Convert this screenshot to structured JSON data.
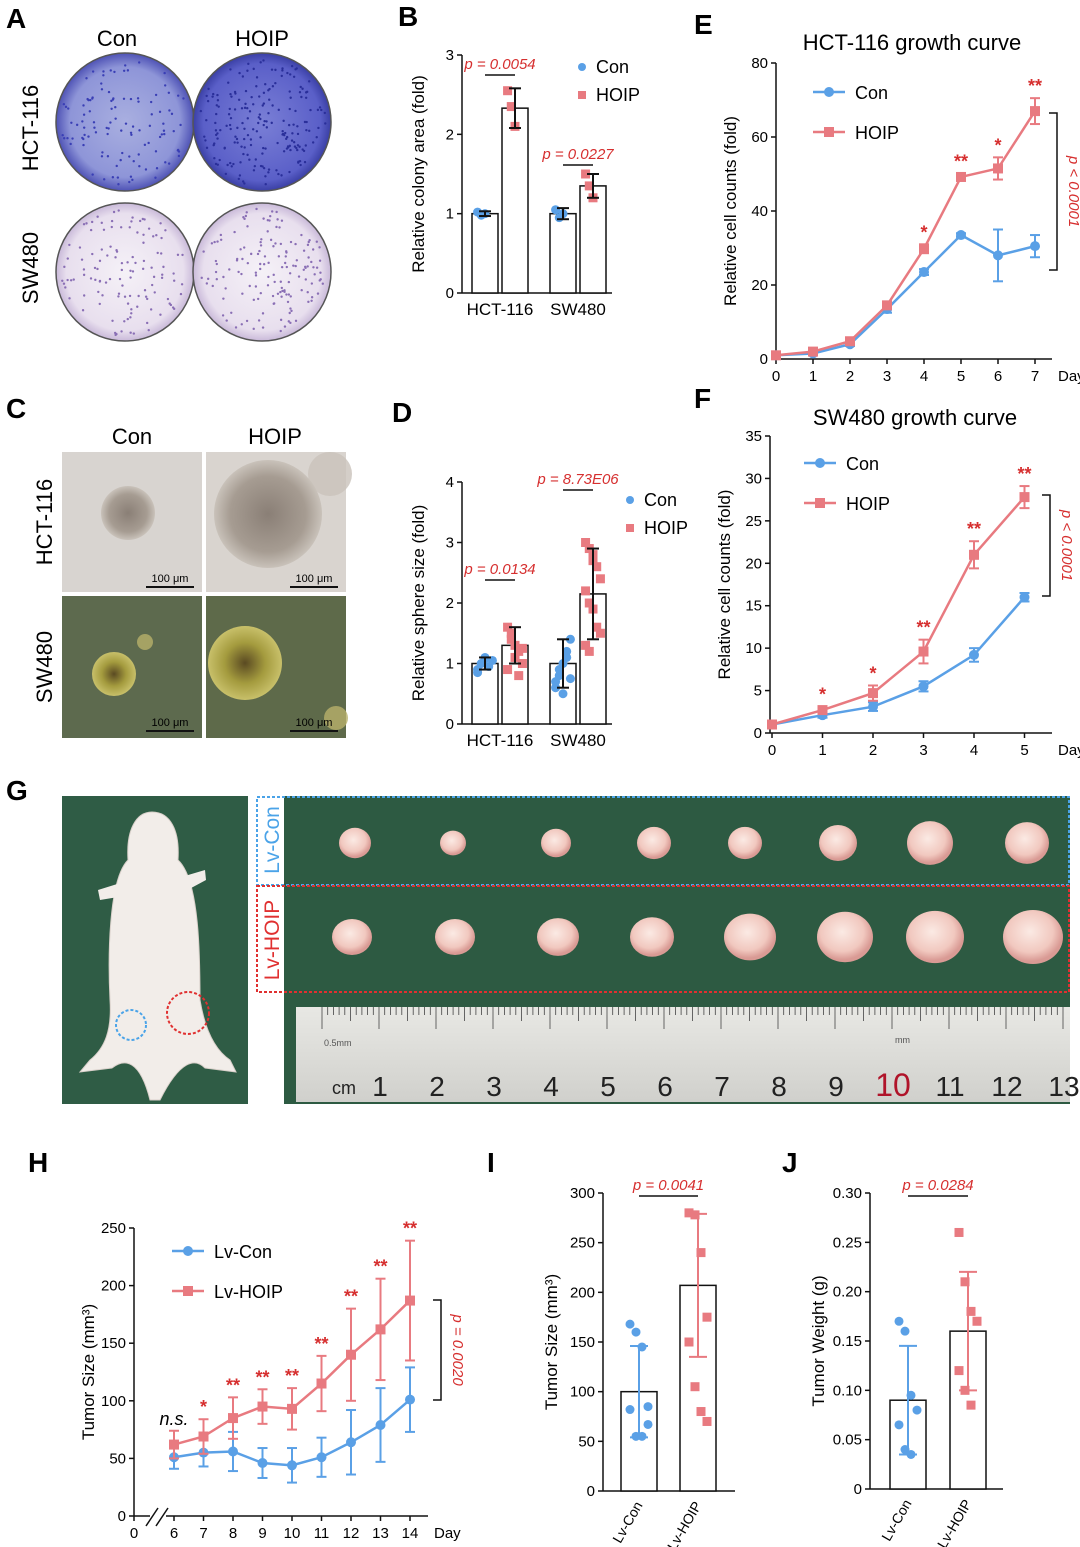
{
  "colors": {
    "con": "#5aa0e6",
    "hoip": "#e87a80",
    "red": "#d62f2f",
    "green": "#2d5a42",
    "dish_blue": "#3a3fb5",
    "dish_purple": "#8a6fb5"
  },
  "panel_labels": {
    "A": "A",
    "B": "B",
    "C": "C",
    "D": "D",
    "E": "E",
    "F": "F",
    "G": "G",
    "H": "H",
    "I": "I",
    "J": "J"
  },
  "panelA": {
    "cols": [
      "Con",
      "HOIP"
    ],
    "rows": [
      "HCT-116",
      "SW480"
    ]
  },
  "panelC": {
    "cols": [
      "Con",
      "HOIP"
    ],
    "rows": [
      "HCT-116",
      "SW480"
    ],
    "scale": "100 μm"
  },
  "panelG": {
    "con_label": "Lv-Con",
    "hoip_label": "Lv-HOIP",
    "ruler_cm": "cm",
    "ruler_small": "0.5mm",
    "ruler_mm": "mm",
    "ruler_numbers": [
      "1",
      "2",
      "3",
      "4",
      "5",
      "6",
      "7",
      "8",
      "9",
      "10",
      "11",
      "12",
      "13"
    ]
  },
  "chart_data": [
    {
      "id": "B",
      "type": "bar",
      "ylabel": "Relative colony area (fold)",
      "ylim": [
        0,
        3
      ],
      "yticks": [
        "0",
        "1",
        "2",
        "3"
      ],
      "categories": [
        "HCT-116",
        "SW480"
      ],
      "legend": [
        "Con",
        "HOIP"
      ],
      "series": [
        {
          "name": "Con",
          "values": [
            1.0,
            1.0
          ],
          "err": [
            0.03,
            0.07
          ]
        },
        {
          "name": "HOIP",
          "values": [
            2.33,
            1.35
          ],
          "err": [
            0.25,
            0.15
          ]
        }
      ],
      "points": {
        "Con": [
          [
            1.02,
            0.98,
            1.0
          ],
          [
            1.05,
            0.95,
            1.0
          ]
        ],
        "HOIP": [
          [
            2.55,
            2.35,
            2.1
          ],
          [
            1.5,
            1.35,
            1.2
          ]
        ]
      },
      "pvalues": [
        "p = 0.0054",
        "p = 0.0227"
      ]
    },
    {
      "id": "D",
      "type": "bar",
      "ylabel": "Relative sphere size (fold)",
      "ylim": [
        0,
        4
      ],
      "yticks": [
        "0",
        "1",
        "2",
        "3",
        "4"
      ],
      "categories": [
        "HCT-116",
        "SW480"
      ],
      "legend": [
        "Con",
        "HOIP"
      ],
      "series": [
        {
          "name": "Con",
          "values": [
            1.0,
            1.0
          ],
          "err": [
            0.1,
            0.4
          ]
        },
        {
          "name": "HOIP",
          "values": [
            1.3,
            2.15
          ],
          "err": [
            0.3,
            0.75
          ]
        }
      ],
      "points": {
        "Con": [
          [
            0.9,
            1.0,
            1.1,
            0.95,
            1.05,
            0.85,
            1.0,
            1.08
          ],
          [
            0.6,
            0.8,
            1.0,
            1.2,
            1.4,
            0.7,
            0.9,
            0.5,
            1.1,
            0.75
          ]
        ],
        "HOIP": [
          [
            1.6,
            1.4,
            1.3,
            1.2,
            1.0,
            0.9,
            1.5,
            1.1,
            0.8,
            1.25
          ],
          [
            3.0,
            2.9,
            2.8,
            2.6,
            2.4,
            2.2,
            2.0,
            1.9,
            1.6,
            1.5,
            1.3,
            1.2,
            2.7
          ]
        ]
      },
      "pvalues": [
        "p = 0.0134",
        "p = 8.73E06"
      ]
    },
    {
      "id": "E",
      "type": "line",
      "title": "HCT-116 growth curve",
      "ylabel": "Relative cell counts (fold)",
      "xlabel": "Day",
      "x": [
        0,
        1,
        2,
        3,
        4,
        5,
        6,
        7
      ],
      "ylim": [
        0,
        80
      ],
      "yticks": [
        "0",
        "20",
        "40",
        "60",
        "80"
      ],
      "legend": [
        "Con",
        "HOIP"
      ],
      "series": [
        {
          "name": "Con",
          "values": [
            1,
            1.5,
            4,
            13.5,
            23.5,
            33.5,
            28,
            30.5
          ],
          "err": [
            0.3,
            0.3,
            0.5,
            1,
            0.8,
            0.5,
            7,
            3
          ]
        },
        {
          "name": "HOIP",
          "values": [
            1,
            2,
            4.8,
            14.5,
            29.8,
            49.2,
            51.5,
            67
          ],
          "err": [
            0.3,
            0.3,
            0.6,
            1,
            1.2,
            1,
            3,
            3.5
          ]
        }
      ],
      "stars": [
        "",
        "",
        "",
        "",
        "*",
        "**",
        "*",
        "**"
      ],
      "pvalue": "p < 0.0001"
    },
    {
      "id": "F",
      "type": "line",
      "title": "SW480 growth curve",
      "ylabel": "Relative cell counts (fold)",
      "xlabel": "Day",
      "x": [
        0,
        1,
        2,
        3,
        4,
        5
      ],
      "ylim": [
        0,
        35
      ],
      "yticks": [
        "0",
        "5",
        "10",
        "15",
        "20",
        "25",
        "30",
        "35"
      ],
      "legend": [
        "Con",
        "HOIP"
      ],
      "series": [
        {
          "name": "Con",
          "values": [
            1,
            2.1,
            3.1,
            5.5,
            9.2,
            16
          ],
          "err": [
            0.2,
            0.3,
            0.5,
            0.6,
            0.8,
            0.5
          ]
        },
        {
          "name": "HOIP",
          "values": [
            1,
            2.7,
            4.7,
            9.6,
            21,
            27.8
          ],
          "err": [
            0.2,
            0.4,
            0.9,
            1.4,
            1.6,
            1.3
          ]
        }
      ],
      "stars": [
        "",
        "*",
        "*",
        "**",
        "**",
        "**"
      ],
      "pvalue": "p < 0.0001"
    },
    {
      "id": "H",
      "type": "line",
      "ylabel": "Tumor Size (mm³)",
      "xlabel": "Day",
      "x": [
        6,
        7,
        8,
        9,
        10,
        11,
        12,
        13,
        14
      ],
      "xticks": [
        "0",
        "6",
        "7",
        "8",
        "9",
        "10",
        "11",
        "12",
        "13",
        "14"
      ],
      "ylim": [
        0,
        250
      ],
      "yticks": [
        "0",
        "50",
        "100",
        "150",
        "200",
        "250"
      ],
      "legend": [
        "Lv-Con",
        "Lv-HOIP"
      ],
      "series": [
        {
          "name": "Lv-Con",
          "values": [
            51,
            55,
            56,
            46,
            44,
            51,
            64,
            79,
            101
          ],
          "err": [
            10,
            12,
            17,
            13,
            15,
            17,
            28,
            32,
            28
          ]
        },
        {
          "name": "Lv-HOIP",
          "values": [
            62,
            69,
            85,
            95,
            93,
            115,
            140,
            162,
            187
          ],
          "err": [
            12,
            15,
            18,
            15,
            18,
            24,
            40,
            44,
            52
          ]
        }
      ],
      "stars": [
        "n.s.",
        "*",
        "**",
        "**",
        "**",
        "**",
        "**",
        "**",
        "**"
      ],
      "pvalue": "p = 0.0020"
    },
    {
      "id": "I",
      "type": "bar",
      "ylabel": "Tumor Size (mm³)",
      "ylim": [
        0,
        300
      ],
      "yticks": [
        "0",
        "50",
        "100",
        "150",
        "200",
        "250",
        "300"
      ],
      "categories": [
        "Lv-Con",
        "Lv-HOIP"
      ],
      "values": [
        100,
        207
      ],
      "err": [
        46,
        72
      ],
      "points": [
        [
          168,
          160,
          145,
          85,
          82,
          55,
          55,
          67
        ],
        [
          280,
          278,
          240,
          175,
          150,
          105,
          80,
          70
        ]
      ],
      "pvalue": "p = 0.0041"
    },
    {
      "id": "J",
      "type": "bar",
      "ylabel": "Tumor Weight (g)",
      "ylim": [
        0,
        0.3
      ],
      "yticks": [
        "0",
        "0.05",
        "0.10",
        "0.15",
        "0.20",
        "0.25",
        "0.30"
      ],
      "categories": [
        "Lv-Con",
        "Lv-HOIP"
      ],
      "values": [
        0.09,
        0.16
      ],
      "err": [
        0.055,
        0.06
      ],
      "points": [
        [
          0.17,
          0.16,
          0.095,
          0.08,
          0.065,
          0.04,
          0.035
        ],
        [
          0.26,
          0.21,
          0.18,
          0.17,
          0.12,
          0.1,
          0.085
        ]
      ],
      "pvalue": "p = 0.0284"
    }
  ]
}
